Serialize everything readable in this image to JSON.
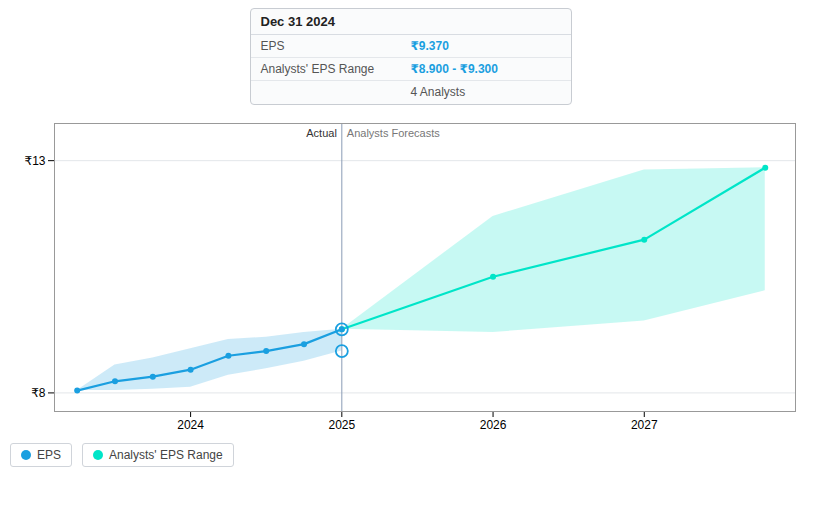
{
  "chart_data": {
    "type": "line",
    "xlim": [
      2023.1,
      2028.0
    ],
    "xticks": [
      2024,
      2025,
      2026,
      2027
    ],
    "ylim": [
      7.6,
      13.8
    ],
    "yticks": [
      {
        "value": 8,
        "label": "₹8"
      },
      {
        "value": 13,
        "label": "₹13"
      }
    ],
    "grid": true,
    "legend": "bottom",
    "series": [
      {
        "name": "EPS",
        "color": "#1a9fe0",
        "marker": "circle",
        "x": [
          2023.25,
          2023.5,
          2023.75,
          2024.0,
          2024.25,
          2024.5,
          2024.75,
          2025.0
        ],
        "values": [
          8.05,
          8.25,
          8.35,
          8.5,
          8.8,
          8.9,
          9.05,
          9.37
        ],
        "upper": [
          8.05,
          8.6,
          8.75,
          8.95,
          9.15,
          9.2,
          9.3,
          9.37
        ],
        "lower": [
          8.05,
          8.05,
          8.08,
          8.12,
          8.38,
          8.52,
          8.68,
          8.9
        ]
      },
      {
        "name": "Analysts' EPS Range",
        "color": "#00e5c8",
        "marker": "circle",
        "x": [
          2025.0,
          2026.0,
          2027.0,
          2027.8
        ],
        "values": [
          9.37,
          10.5,
          11.3,
          12.85
        ],
        "upper": [
          9.37,
          11.8,
          12.8,
          12.85
        ],
        "lower": [
          9.37,
          9.3,
          9.55,
          10.2
        ]
      }
    ],
    "divider": {
      "x": 2025.0,
      "left_label": "Actual",
      "right_label": "Analysts Forecasts"
    },
    "highlight_points": [
      {
        "x": 2025.0,
        "y": 9.37
      },
      {
        "x": 2025.0,
        "y": 8.9
      }
    ],
    "tooltip": {
      "title": "Dec 31 2024",
      "rows": [
        {
          "label": "EPS",
          "value": "₹9.370"
        },
        {
          "label": "Analysts' EPS Range",
          "value": "₹8.900 - ₹9.300"
        }
      ],
      "footer": "4 Analysts"
    }
  }
}
